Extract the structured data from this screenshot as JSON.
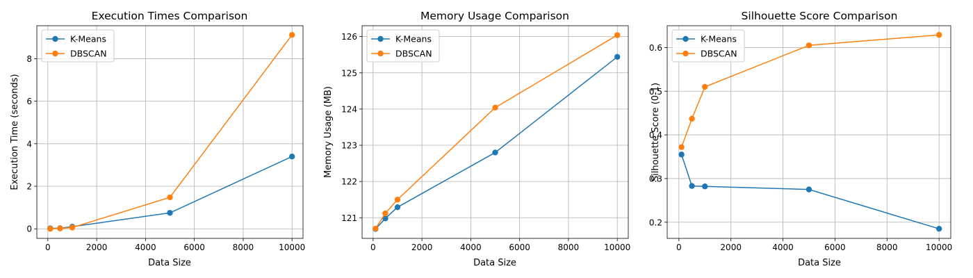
{
  "chart_data": [
    {
      "type": "line",
      "title": "Execution Times Comparison",
      "xlabel": "Data Size",
      "ylabel": "Execution Time (seconds)",
      "x": [
        100,
        500,
        1000,
        5000,
        10000
      ],
      "xlim": [
        -450,
        10450
      ],
      "ylim": [
        -0.45,
        9.55
      ],
      "xticks": [
        0,
        2000,
        4000,
        6000,
        8000,
        10000
      ],
      "yticks": [
        0,
        2,
        4,
        6,
        8
      ],
      "grid": true,
      "legend_position": "top-left",
      "series": [
        {
          "name": "K-Means",
          "color": "#1f77b4",
          "values": [
            0.02,
            0.03,
            0.1,
            0.75,
            3.4
          ]
        },
        {
          "name": "DBSCAN",
          "color": "#ff7f0e",
          "values": [
            0.0,
            0.02,
            0.06,
            1.48,
            9.12
          ]
        }
      ]
    },
    {
      "type": "line",
      "title": "Memory Usage Comparison",
      "xlabel": "Data Size",
      "ylabel": "Memory Usage (MB)",
      "x": [
        100,
        500,
        1000,
        5000,
        10000
      ],
      "xlim": [
        -450,
        10450
      ],
      "ylim": [
        120.43,
        126.3
      ],
      "xticks": [
        0,
        2000,
        4000,
        6000,
        8000,
        10000
      ],
      "yticks": [
        121,
        122,
        123,
        124,
        125,
        126
      ],
      "grid": true,
      "legend_position": "top-left",
      "series": [
        {
          "name": "K-Means",
          "color": "#1f77b4",
          "values": [
            120.69,
            120.98,
            121.29,
            122.8,
            125.44
          ]
        },
        {
          "name": "DBSCAN",
          "color": "#ff7f0e",
          "values": [
            120.7,
            121.12,
            121.5,
            124.04,
            126.04
          ]
        }
      ]
    },
    {
      "type": "line",
      "title": "Silhouette Score Comparison",
      "xlabel": "Data Size",
      "ylabel": "Silhouette Score (0-1)",
      "x": [
        100,
        500,
        1000,
        5000,
        10000
      ],
      "xlim": [
        -450,
        10450
      ],
      "ylim": [
        0.163,
        0.65
      ],
      "xticks": [
        0,
        2000,
        4000,
        6000,
        8000,
        10000
      ],
      "yticks": [
        0.2,
        0.3,
        0.4,
        0.5,
        0.6
      ],
      "grid": true,
      "legend_position": "top-left",
      "series": [
        {
          "name": "K-Means",
          "color": "#1f77b4",
          "values": [
            0.355,
            0.283,
            0.282,
            0.275,
            0.185
          ]
        },
        {
          "name": "DBSCAN",
          "color": "#ff7f0e",
          "values": [
            0.372,
            0.437,
            0.51,
            0.605,
            0.629
          ]
        }
      ]
    }
  ]
}
